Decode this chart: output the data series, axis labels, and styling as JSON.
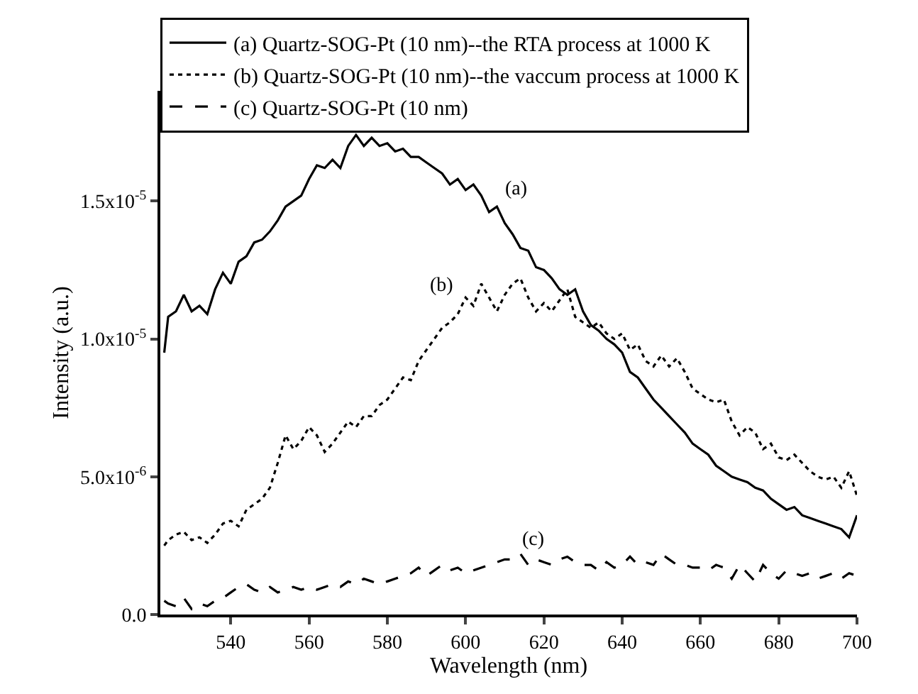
{
  "chart_data": {
    "type": "line",
    "xlabel": "Wavelength (nm)",
    "ylabel": "Intensity (a.u.)",
    "xlim": [
      522,
      700
    ],
    "xticks": [
      540,
      560,
      580,
      600,
      620,
      640,
      660,
      680,
      700
    ],
    "ylim": [
      0,
      1.9e-05
    ],
    "yticks": [
      {
        "value": 0,
        "label": "0.0"
      },
      {
        "value": 5e-06,
        "label": "5.0x10$^{-6}$"
      },
      {
        "value": 1e-05,
        "label": "1.0x10$^{-5}$"
      },
      {
        "value": 1.5e-05,
        "label": "1.5x10$^{-5}$"
      }
    ],
    "grid": false,
    "legend": "top",
    "marker": "none",
    "x": [
      523,
      524,
      526,
      528,
      530,
      532,
      534,
      536,
      538,
      540,
      542,
      544,
      546,
      548,
      550,
      552,
      554,
      556,
      558,
      560,
      562,
      564,
      566,
      568,
      570,
      572,
      574,
      576,
      578,
      580,
      582,
      584,
      586,
      588,
      590,
      592,
      594,
      596,
      598,
      600,
      602,
      604,
      606,
      608,
      610,
      612,
      614,
      616,
      618,
      620,
      622,
      624,
      626,
      628,
      630,
      632,
      634,
      636,
      638,
      640,
      642,
      644,
      646,
      648,
      650,
      652,
      654,
      656,
      658,
      660,
      662,
      664,
      666,
      668,
      670,
      672,
      674,
      676,
      678,
      680,
      682,
      684,
      686,
      688,
      690,
      692,
      694,
      696,
      698,
      700
    ],
    "series": [
      {
        "name": "(a) Quartz-SOG-Pt (10 nm)--the RTA process at 1000 K",
        "color": "#000000",
        "line_style": "solid",
        "values": [
          9.5e-06,
          1.08e-05,
          1.1e-05,
          1.16e-05,
          1.1e-05,
          1.12e-05,
          1.09e-05,
          1.18e-05,
          1.24e-05,
          1.2e-05,
          1.28e-05,
          1.3e-05,
          1.35e-05,
          1.36e-05,
          1.39e-05,
          1.43e-05,
          1.48e-05,
          1.5e-05,
          1.52e-05,
          1.58e-05,
          1.63e-05,
          1.62e-05,
          1.65e-05,
          1.62e-05,
          1.7e-05,
          1.74e-05,
          1.7e-05,
          1.73e-05,
          1.7e-05,
          1.71e-05,
          1.68e-05,
          1.69e-05,
          1.66e-05,
          1.66e-05,
          1.64e-05,
          1.62e-05,
          1.6e-05,
          1.56e-05,
          1.58e-05,
          1.54e-05,
          1.56e-05,
          1.52e-05,
          1.46e-05,
          1.48e-05,
          1.42e-05,
          1.38e-05,
          1.33e-05,
          1.32e-05,
          1.26e-05,
          1.25e-05,
          1.22e-05,
          1.18e-05,
          1.16e-05,
          1.18e-05,
          1.1e-05,
          1.05e-05,
          1.03e-05,
          1e-05,
          9.8e-06,
          9.5e-06,
          8.8e-06,
          8.6e-06,
          8.2e-06,
          7.8e-06,
          7.5e-06,
          7.2e-06,
          6.9e-06,
          6.6e-06,
          6.2e-06,
          6e-06,
          5.8e-06,
          5.4e-06,
          5.2e-06,
          5e-06,
          4.9e-06,
          4.8e-06,
          4.6e-06,
          4.5e-06,
          4.2e-06,
          4e-06,
          3.8e-06,
          3.9e-06,
          3.6e-06,
          3.5e-06,
          3.4e-06,
          3.3e-06,
          3.2e-06,
          3.1e-06,
          2.8e-06,
          3.6e-06
        ]
      },
      {
        "name": "(b) Quartz-SOG-Pt (10 nm)--the vaccum process at 1000 K",
        "color": "#000000",
        "line_style": "dotted",
        "values": [
          2.5e-06,
          2.7e-06,
          2.9e-06,
          3e-06,
          2.7e-06,
          2.8e-06,
          2.6e-06,
          2.9e-06,
          3.3e-06,
          3.4e-06,
          3.2e-06,
          3.8e-06,
          4e-06,
          4.2e-06,
          4.6e-06,
          5.5e-06,
          6.5e-06,
          6e-06,
          6.3e-06,
          6.8e-06,
          6.5e-06,
          5.9e-06,
          6.2e-06,
          6.6e-06,
          7e-06,
          6.8e-06,
          7.2e-06,
          7.2e-06,
          7.6e-06,
          7.8e-06,
          8.2e-06,
          8.6e-06,
          8.5e-06,
          9.2e-06,
          9.6e-06,
          1e-05,
          1.04e-05,
          1.06e-05,
          1.09e-05,
          1.15e-05,
          1.12e-05,
          1.2e-05,
          1.15e-05,
          1.1e-05,
          1.16e-05,
          1.2e-05,
          1.22e-05,
          1.15e-05,
          1.1e-05,
          1.13e-05,
          1.1e-05,
          1.14e-05,
          1.18e-05,
          1.08e-05,
          1.06e-05,
          1.04e-05,
          1.06e-05,
          1.02e-05,
          1e-05,
          1.02e-05,
          9.6e-06,
          9.8e-06,
          9.2e-06,
          9e-06,
          9.4e-06,
          9e-06,
          9.3e-06,
          8.8e-06,
          8.2e-06,
          8e-06,
          7.8e-06,
          7.7e-06,
          7.8e-06,
          7e-06,
          6.5e-06,
          6.8e-06,
          6.6e-06,
          6e-06,
          6.2e-06,
          5.7e-06,
          5.6e-06,
          5.8e-06,
          5.5e-06,
          5.2e-06,
          5e-06,
          4.9e-06,
          5e-06,
          4.6e-06,
          5.2e-06,
          4.3e-06
        ]
      },
      {
        "name": "(c) Quartz-SOG-Pt (10 nm)",
        "color": "#000000",
        "line_style": "dashed",
        "values": [
          5e-07,
          4e-07,
          3e-07,
          6e-07,
          2e-07,
          4e-07,
          3e-07,
          5e-07,
          6e-07,
          8e-07,
          1e-06,
          1.1e-06,
          9e-07,
          8e-07,
          1e-06,
          8e-07,
          9e-07,
          1e-06,
          9e-07,
          1e-06,
          9e-07,
          1e-06,
          1.1e-06,
          1e-06,
          1.2e-06,
          1.1e-06,
          1.3e-06,
          1.2e-06,
          1.1e-06,
          1.2e-06,
          1.3e-06,
          1.4e-06,
          1.5e-06,
          1.7e-06,
          1.4e-06,
          1.6e-06,
          1.8e-06,
          1.6e-06,
          1.7e-06,
          1.5e-06,
          1.6e-06,
          1.7e-06,
          1.8e-06,
          1.9e-06,
          2e-06,
          2e-06,
          2.2e-06,
          1.8e-06,
          2e-06,
          1.9e-06,
          1.8e-06,
          2e-06,
          2.1e-06,
          1.9e-06,
          1.8e-06,
          1.8e-06,
          1.6e-06,
          1.9e-06,
          1.7e-06,
          1.8e-06,
          2.1e-06,
          1.8e-06,
          1.9e-06,
          1.8e-06,
          2.2e-06,
          2e-06,
          1.8e-06,
          1.8e-06,
          1.7e-06,
          1.7e-06,
          1.6e-06,
          1.8e-06,
          1.7e-06,
          1.3e-06,
          1.8e-06,
          1.5e-06,
          1.2e-06,
          1.8e-06,
          1.5e-06,
          1.3e-06,
          1.6e-06,
          1.5e-06,
          1.4e-06,
          1.5e-06,
          1.3e-06,
          1.4e-06,
          1.5e-06,
          1.3e-06,
          1.5e-06,
          1.4e-06
        ]
      }
    ],
    "annotations": [
      "(a)",
      "(b)",
      "(c)"
    ]
  }
}
